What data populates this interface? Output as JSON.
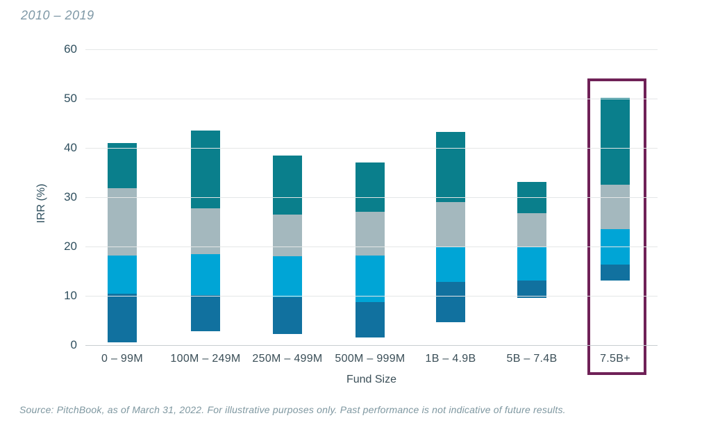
{
  "page": {
    "title": "2010 – 2019",
    "source_note": "Source: PitchBook, as of March 31, 2022. For illustrative purposes only. Past performance is not indicative of future results."
  },
  "chart_data": {
    "type": "bar",
    "subtype": "floating_range_bars_with_median_tick",
    "title": "2010 – 2019",
    "xlabel": "Fund Size",
    "ylabel": "IRR (%)",
    "ylim": [
      0,
      60
    ],
    "yticks": [
      0,
      10,
      20,
      30,
      40,
      50,
      60
    ],
    "grid": true,
    "legend": "none",
    "categories": [
      "0 – 99M",
      "100M – 249M",
      "250M – 499M",
      "500M – 999M",
      "1B – 4.9B",
      "5B – 7.4B",
      "7.5B+"
    ],
    "series": [
      {
        "name": "range_low",
        "values": [
          0.5,
          2.8,
          2.2,
          1.5,
          4.6,
          9.6,
          13.1
        ]
      },
      {
        "name": "lower_band_top",
        "values": [
          10.4,
          10.2,
          9.7,
          8.7,
          12.8,
          13.1,
          16.4
        ]
      },
      {
        "name": "median",
        "values": [
          18.2,
          18.4,
          18.0,
          18.1,
          19.8,
          19.9,
          23.5
        ]
      },
      {
        "name": "upper_band_top",
        "values": [
          31.8,
          27.7,
          26.5,
          27.0,
          29.0,
          26.7,
          32.6
        ]
      },
      {
        "name": "range_high",
        "values": [
          41.0,
          43.5,
          38.5,
          37.1,
          43.3,
          33.1,
          50.1
        ]
      }
    ],
    "highlighted_category": "7.5B+",
    "colors": {
      "lower_band": "#11719F",
      "mid_lower_band": "#00A5D6",
      "median_tick": "#B6CE2F",
      "mid_upper_band": "#A4B8BE",
      "upper_band": "#0A7F8C",
      "highlight_box": "#6F2157",
      "chart_title_text": "#7E98A6",
      "source_text": "#7E97A0",
      "axis_tick_text": "#2F4F5E",
      "axis_title_text": "#3A4E57",
      "gridline": "#E4E6E7",
      "zero_axis_line": "#C8CED1"
    }
  }
}
